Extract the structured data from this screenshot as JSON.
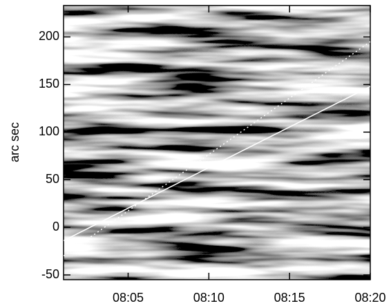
{
  "chart_data": {
    "type": "line",
    "ylabel": "arc sec",
    "x": [
      1,
      20
    ],
    "series": [
      {
        "color": "#ffffff",
        "dashed": false,
        "values": [
          -14,
          148
        ]
      },
      {
        "color": "#ffffff",
        "dashed": true,
        "values": [
          -30,
          195
        ]
      }
    ],
    "xlim": [
      1,
      20
    ],
    "xticks": [
      {
        "value": 5,
        "label": "08:05"
      },
      {
        "value": 10,
        "label": "08:10"
      },
      {
        "value": 15,
        "label": "08:15"
      },
      {
        "value": 20,
        "label": "08:20"
      }
    ],
    "ylim": [
      -55,
      233
    ],
    "yticks": [
      -50,
      0,
      50,
      100,
      150,
      200
    ]
  }
}
